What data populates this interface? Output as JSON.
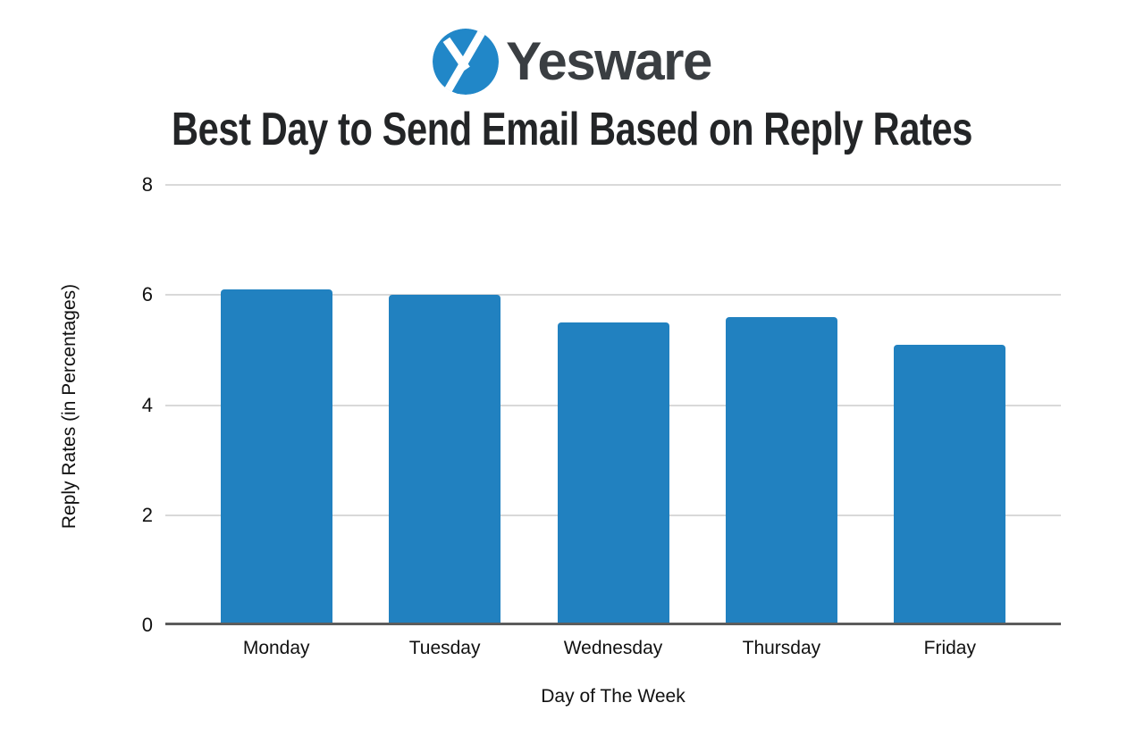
{
  "logo": {
    "brand": "Yesware",
    "icon": "yesware-y-icon"
  },
  "colors": {
    "bar": "#2181c0",
    "logo_circle": "#2187c8",
    "wordmark": "#3a3e42",
    "gridline": "#d9d9d9",
    "baseline": "#5c5c5c"
  },
  "chart_data": {
    "type": "bar",
    "title": "Best Day to Send Email Based on Reply Rates",
    "categories": [
      "Monday",
      "Tuesday",
      "Wednesday",
      "Thursday",
      "Friday"
    ],
    "values": [
      6.1,
      6.0,
      5.5,
      5.6,
      5.1
    ],
    "xlabel": "Day of The Week",
    "ylabel": "Reply Rates (in Percentages)",
    "ylim": [
      0,
      8
    ],
    "yticks": [
      0,
      2,
      4,
      6,
      8
    ],
    "grid": true,
    "legend": "none",
    "bar_color": "#2181c0"
  }
}
